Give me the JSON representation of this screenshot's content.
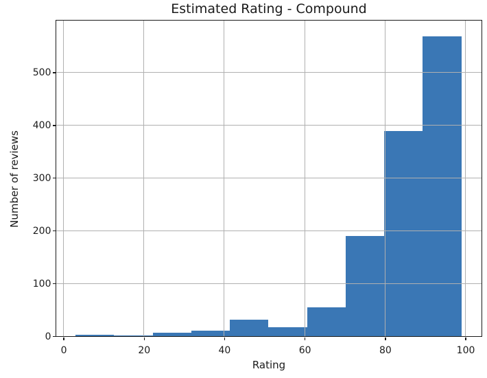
{
  "chart_data": {
    "type": "bar",
    "subtype": "histogram",
    "title": "Estimated Rating - Compound",
    "xlabel": "Rating",
    "ylabel": "Number of reviews",
    "bin_edges": [
      3.0,
      12.6,
      22.2,
      31.8,
      41.4,
      51.0,
      60.6,
      70.2,
      79.8,
      89.4,
      99.0
    ],
    "counts": [
      3,
      1,
      6,
      11,
      31,
      17,
      55,
      190,
      389,
      568
    ],
    "xticks": [
      0,
      20,
      40,
      60,
      80,
      100
    ],
    "yticks": [
      0,
      100,
      200,
      300,
      400,
      500
    ],
    "xlim": [
      -1.8,
      104.0
    ],
    "ylim": [
      0,
      598
    ],
    "grid": true,
    "grid_above_bars": true,
    "legend": null,
    "colors": {
      "bar": "#3a77b5",
      "grid": "#b0b0b0",
      "spine": "#1a1a1a",
      "text": "#1a1a1a"
    }
  }
}
